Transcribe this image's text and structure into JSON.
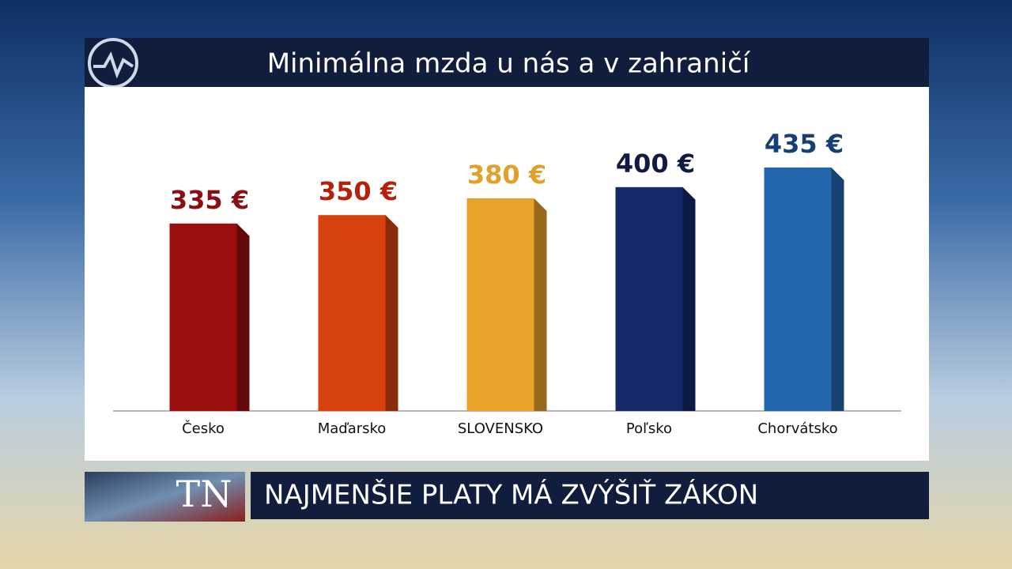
{
  "chart_data": {
    "type": "bar",
    "title": "Minimálna mzda u nás a v zahraničí",
    "categories": [
      "Česko",
      "Maďarsko",
      "SLOVENSKO",
      "Poľsko",
      "Chorvátsko"
    ],
    "values": [
      335,
      350,
      380,
      400,
      435
    ],
    "value_labels": [
      "335 €",
      "350 €",
      "380 €",
      "400 €",
      "435 €"
    ],
    "colors": [
      "#9a0e0e",
      "#d8420f",
      "#e8a22a",
      "#14286a",
      "#2266ab"
    ],
    "label_colors": [
      "#8a0f12",
      "#b8200e",
      "#e0a02a",
      "#101a44",
      "#163f78"
    ]
  },
  "broadcast": {
    "logo": "TN",
    "headline": "NAJMENŠIE PLATY MÁ ZVÝŠIŤ ZÁKON"
  }
}
